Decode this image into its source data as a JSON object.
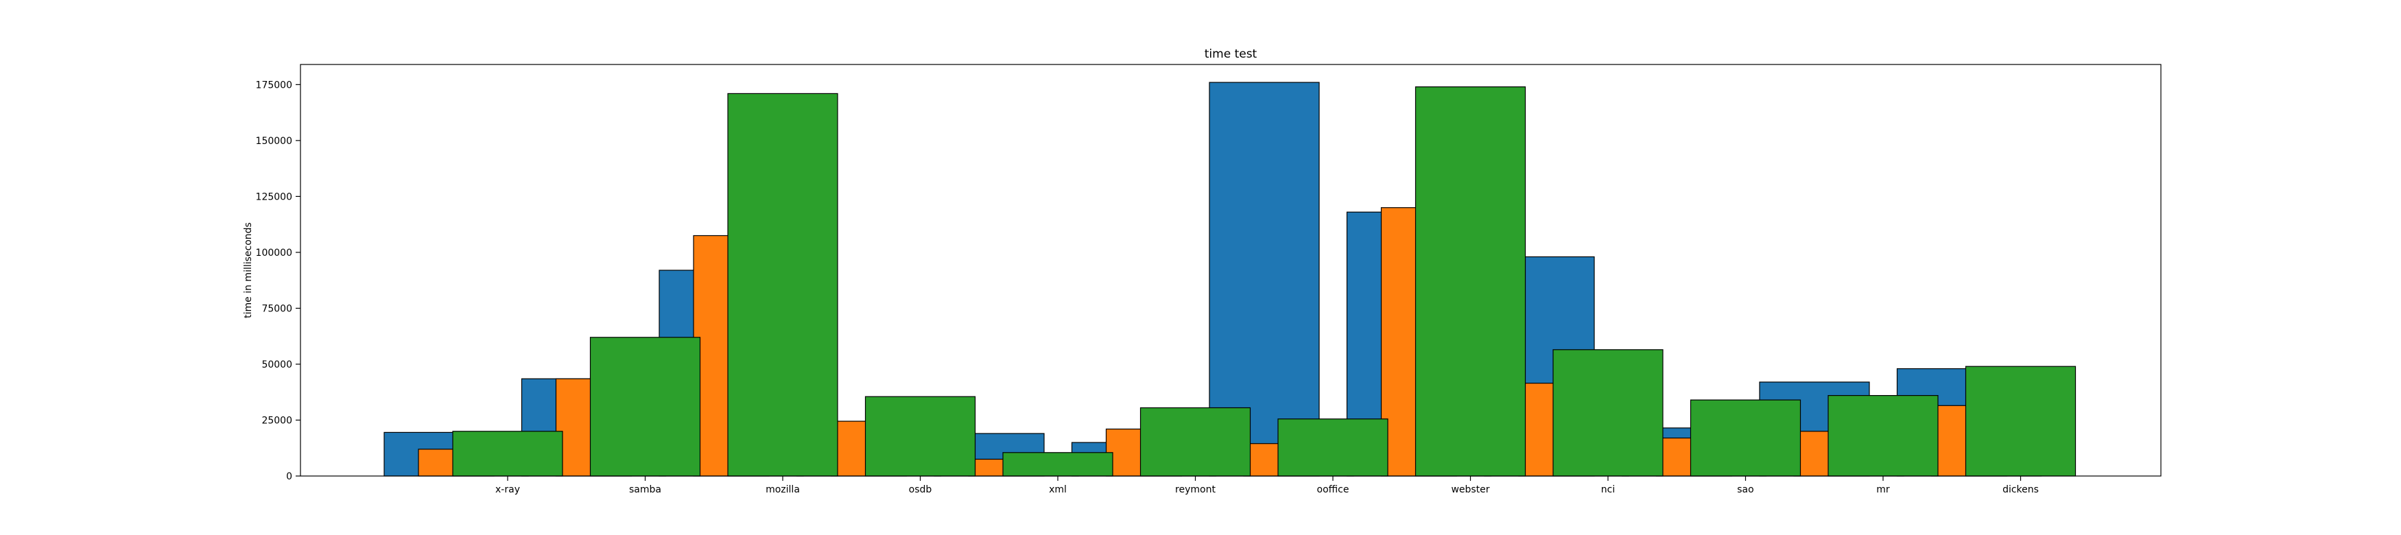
{
  "chart_data": {
    "type": "bar",
    "title": "time test",
    "xlabel": "",
    "ylabel": "time in milliseconds",
    "ylim": [
      0,
      184000
    ],
    "y_ticks": [
      0,
      25000,
      50000,
      75000,
      100000,
      125000,
      150000,
      175000
    ],
    "grid": false,
    "categories": [
      "x-ray",
      "samba",
      "mozilla",
      "osdb",
      "xml",
      "reymont",
      "ooffice",
      "webster",
      "nci",
      "sao",
      "mr",
      "dickens"
    ],
    "series": [
      {
        "color": "#1f77b4",
        "values": [
          19500,
          43500,
          92000,
          15500,
          19000,
          15000,
          176000,
          118000,
          98000,
          21500,
          42000,
          48000
        ]
      },
      {
        "color": "#ff7f0e",
        "values": [
          12000,
          43500,
          107500,
          24500,
          7500,
          21000,
          14500,
          120000,
          41500,
          17000,
          20000,
          31500
        ]
      },
      {
        "color": "#2ca02c",
        "values": [
          20000,
          62000,
          171000,
          35500,
          10500,
          30500,
          25500,
          174000,
          56500,
          34000,
          36000,
          49000
        ]
      }
    ]
  }
}
